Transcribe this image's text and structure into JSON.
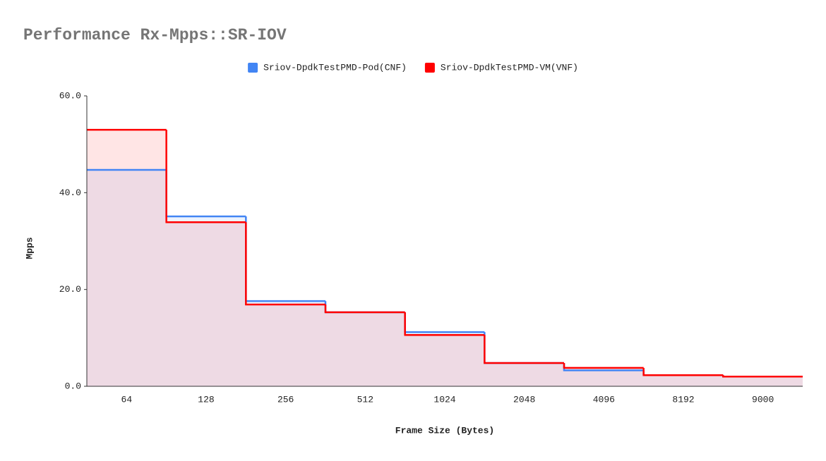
{
  "chart_data": {
    "type": "step-area",
    "title": "Performance Rx-Mpps::SR-IOV",
    "x_label": "Frame Size (Bytes)",
    "y_label": "Mpps",
    "categories": [
      "64",
      "128",
      "256",
      "512",
      "1024",
      "2048",
      "4096",
      "8192",
      "9000"
    ],
    "series": [
      {
        "name": "Sriov-DpdkTestPMD-Pod(CNF)",
        "color": "#4285f4",
        "values": [
          44.7,
          35.1,
          17.6,
          15.3,
          11.2,
          4.8,
          3.3,
          2.3,
          2.0
        ]
      },
      {
        "name": "Sriov-DpdkTestPMD-VM(VNF)",
        "color": "#ff0000",
        "values": [
          53.0,
          33.9,
          16.9,
          15.3,
          10.6,
          4.8,
          3.8,
          2.3,
          2.0
        ]
      }
    ],
    "ylim": [
      0,
      60
    ],
    "yticks": [
      {
        "value": 0,
        "label": "0.0"
      },
      {
        "value": 20,
        "label": "20.0"
      },
      {
        "value": 40,
        "label": "40.0"
      },
      {
        "value": 60,
        "label": "60.0"
      }
    ],
    "legend": "top"
  }
}
